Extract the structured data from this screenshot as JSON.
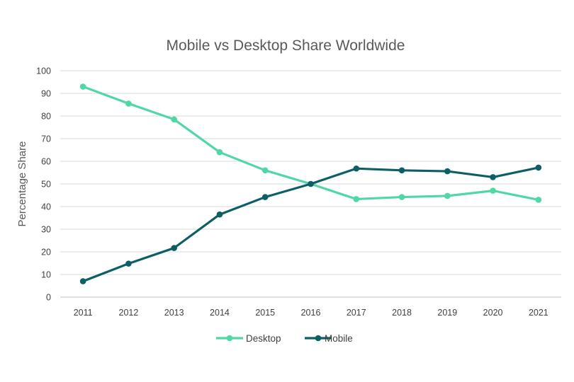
{
  "chart_data": {
    "type": "line",
    "title": "Mobile vs Desktop Share Worldwide",
    "xlabel": "",
    "ylabel": "Percentage Share",
    "categories": [
      "2011",
      "2012",
      "2013",
      "2014",
      "2015",
      "2016",
      "2017",
      "2018",
      "2019",
      "2020",
      "2021"
    ],
    "yticks": [
      "0",
      "10",
      "20",
      "30",
      "40",
      "50",
      "60",
      "70",
      "80",
      "90",
      "100"
    ],
    "ylim": [
      0,
      100
    ],
    "grid": true,
    "legend_position": "bottom",
    "series": [
      {
        "name": "Desktop",
        "color": "#4fd8a5",
        "values": [
          93,
          85.5,
          78.5,
          64,
          56,
          50,
          43.3,
          44.2,
          44.7,
          47,
          43
        ]
      },
      {
        "name": "Mobile",
        "color": "#0d5f66",
        "values": [
          7,
          14.8,
          21.7,
          36.5,
          44.2,
          50,
          56.8,
          56,
          55.6,
          53,
          57.2
        ]
      }
    ]
  }
}
